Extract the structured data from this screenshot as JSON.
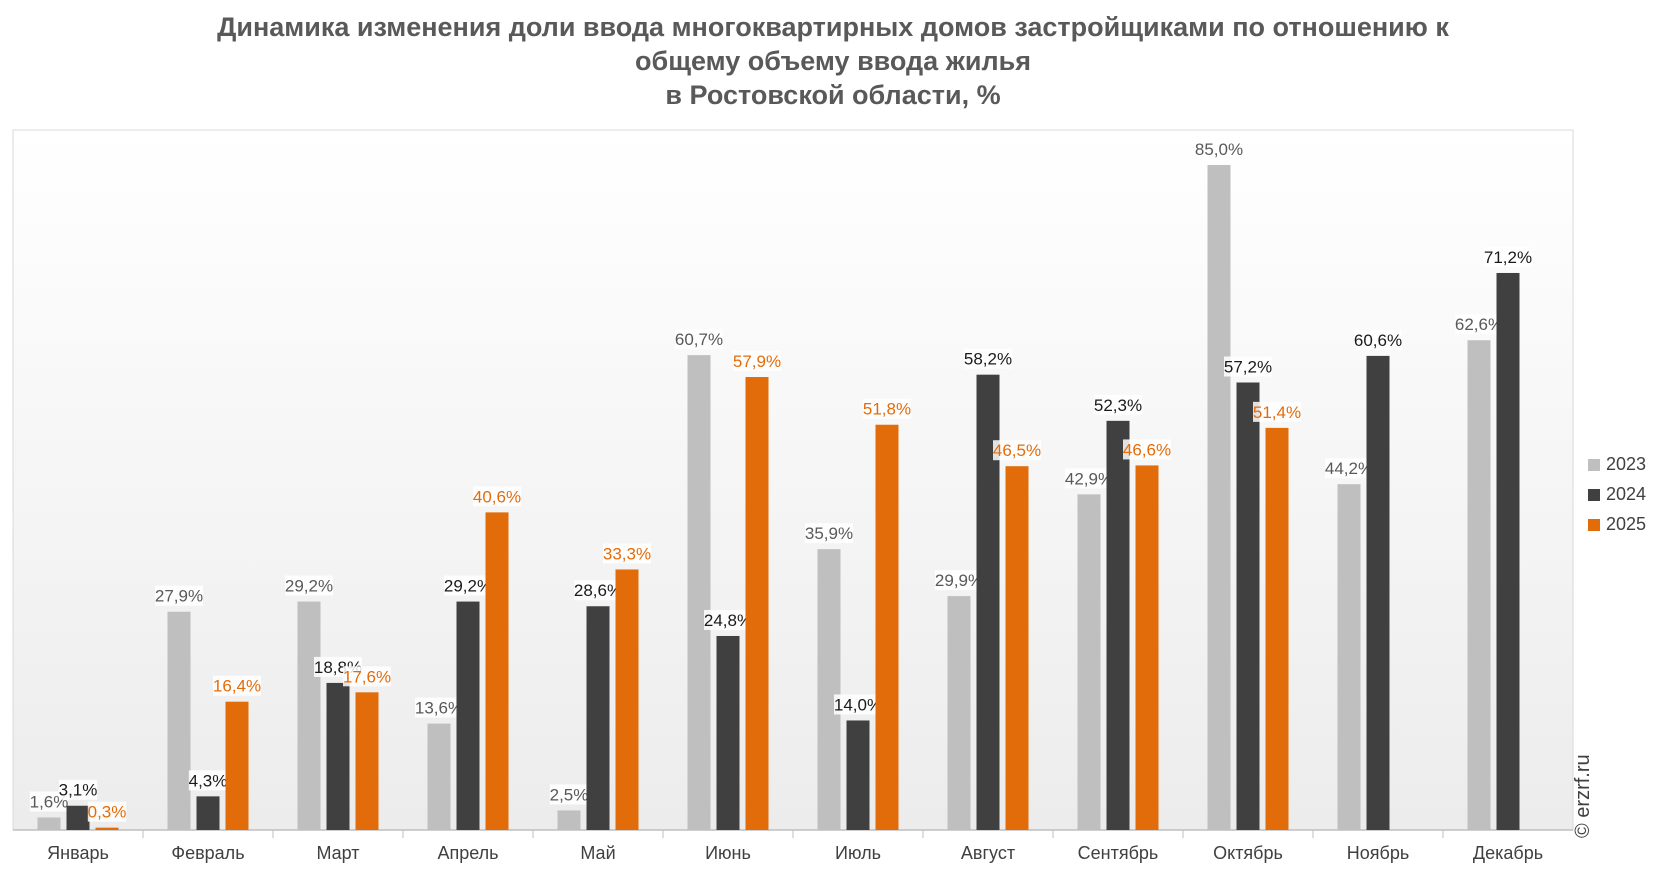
{
  "chart_data": {
    "type": "bar",
    "title_lines": [
      "Динамика изменения доли ввода многоквартирных домов застройщиками по отношению к",
      "общему объему ввода жилья",
      "в Ростовской области, %"
    ],
    "categories": [
      "Январь",
      "Февраль",
      "Март",
      "Апрель",
      "Май",
      "Июнь",
      "Июль",
      "Август",
      "Сентябрь",
      "Октябрь",
      "Ноябрь",
      "Декабрь"
    ],
    "series": [
      {
        "name": "2023",
        "color": "#bfbfbf",
        "label_color": "#595959",
        "values": [
          1.6,
          27.9,
          29.2,
          13.6,
          2.5,
          60.7,
          35.9,
          29.9,
          42.9,
          85.0,
          44.2,
          62.6
        ],
        "labels": [
          "1,6%",
          "27,9%",
          "29,2%",
          "13,6%",
          "2,5%",
          "60,7%",
          "35,9%",
          "29,9%",
          "42,9%",
          "85,0%",
          "44,2%",
          "62,6%"
        ]
      },
      {
        "name": "2024",
        "color": "#404040",
        "label_color": "#1a1a1a",
        "values": [
          3.1,
          4.3,
          18.8,
          29.2,
          28.6,
          24.8,
          14.0,
          58.2,
          52.3,
          57.2,
          60.6,
          71.2
        ],
        "labels": [
          "3,1%",
          "4,3%",
          "18,8%",
          "29,2%",
          "28,6%",
          "24,8%",
          "14,0%",
          "58,2%",
          "52,3%",
          "57,2%",
          "60,6%",
          "71,2%"
        ]
      },
      {
        "name": "2025",
        "color": "#e36c0a",
        "label_color": "#e36c0a",
        "values": [
          0.3,
          16.4,
          17.6,
          40.6,
          33.3,
          57.9,
          51.8,
          46.5,
          46.6,
          51.4,
          null,
          null
        ],
        "labels": [
          "0,3%",
          "16,4%",
          "17,6%",
          "40,6%",
          "33,3%",
          "57,9%",
          "51,8%",
          "46,5%",
          "46,6%",
          "51,4%",
          "",
          ""
        ]
      }
    ],
    "ylim": [
      0,
      90
    ],
    "legend_position": "right",
    "grid": false
  },
  "watermark": "© erzrf.ru"
}
